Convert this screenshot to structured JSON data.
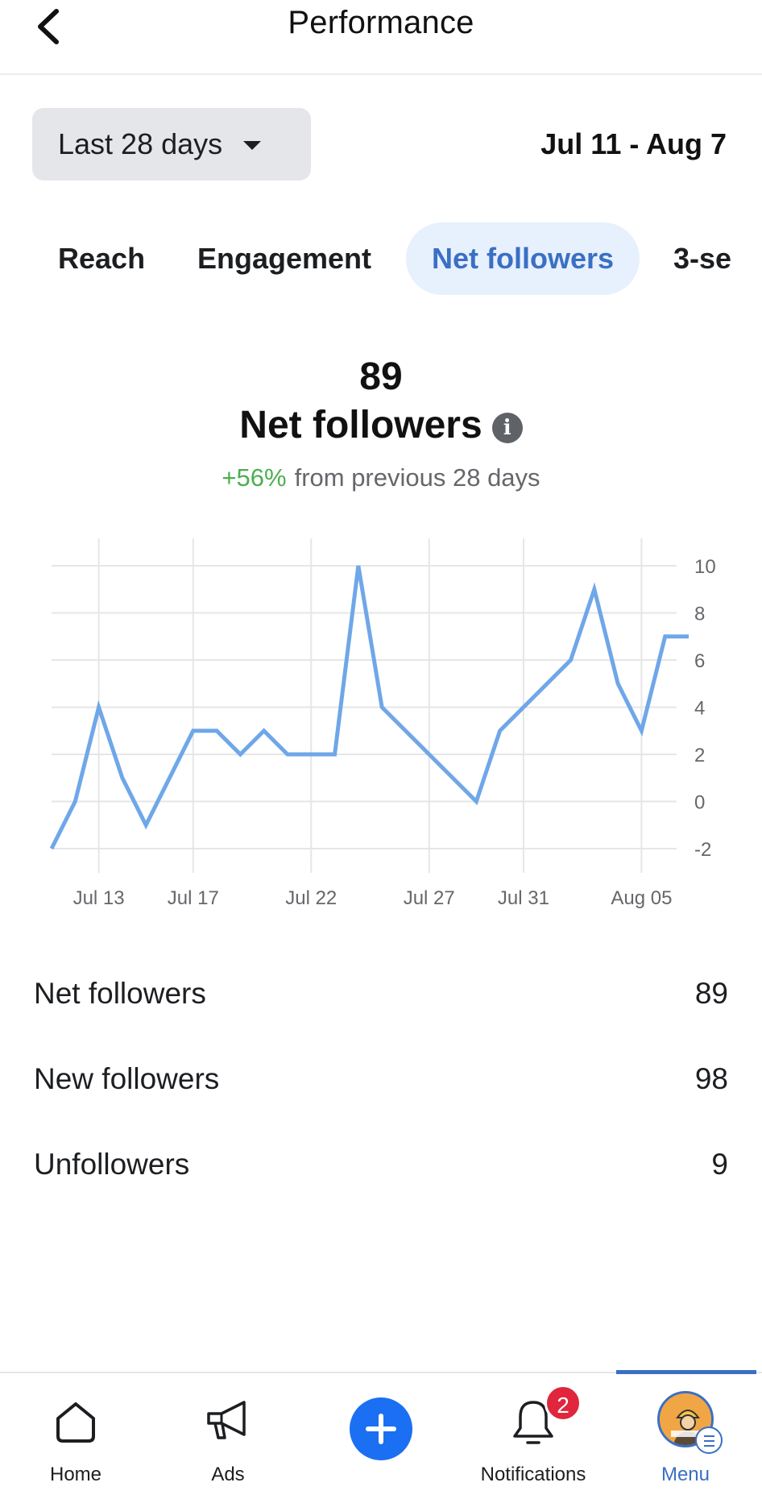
{
  "header": {
    "title": "Performance"
  },
  "filters": {
    "range_label": "Last 28 days",
    "date_range": "Jul 11 - Aug 7"
  },
  "tabs": [
    {
      "label": "Reach",
      "active": false
    },
    {
      "label": "Engagement",
      "active": false
    },
    {
      "label": "Net followers",
      "active": true
    },
    {
      "label": "3-se",
      "active": false
    }
  ],
  "summary": {
    "value": "89",
    "title": "Net followers",
    "change": "+56%",
    "change_text": "from previous 28 days",
    "change_color": "#4caf50"
  },
  "chart_data": {
    "type": "line",
    "x": [
      "Jul 11",
      "Jul 12",
      "Jul 13",
      "Jul 14",
      "Jul 15",
      "Jul 16",
      "Jul 17",
      "Jul 18",
      "Jul 19",
      "Jul 20",
      "Jul 21",
      "Jul 22",
      "Jul 23",
      "Jul 24",
      "Jul 25",
      "Jul 26",
      "Jul 27",
      "Jul 28",
      "Jul 29",
      "Jul 30",
      "Jul 31",
      "Aug 01",
      "Aug 02",
      "Aug 03",
      "Aug 04",
      "Aug 05",
      "Aug 06",
      "Aug 07"
    ],
    "series": [
      {
        "values": [
          -2,
          0,
          4,
          1,
          -1,
          1,
          3,
          3,
          2,
          3,
          2,
          2,
          2,
          10,
          4,
          3,
          2,
          1,
          0,
          3,
          4,
          5,
          6,
          9,
          5,
          3,
          7,
          7
        ],
        "color": "#6fa7e8"
      }
    ],
    "xticks": [
      "Jul 13",
      "Jul 17",
      "Jul 22",
      "Jul 27",
      "Jul 31",
      "Aug 05"
    ],
    "yticks": [
      10,
      8,
      6,
      4,
      2,
      0,
      -2
    ],
    "ylim": [
      -2,
      10
    ],
    "y_axis_side": "right",
    "grid": true,
    "title": "",
    "xlabel": "",
    "ylabel": ""
  },
  "stats": [
    {
      "label": "Net followers",
      "value": "89"
    },
    {
      "label": "New followers",
      "value": "98"
    },
    {
      "label": "Unfollowers",
      "value": "9"
    }
  ],
  "nav": {
    "items": [
      {
        "label": "Home",
        "icon": "home-icon"
      },
      {
        "label": "Ads",
        "icon": "megaphone-icon"
      },
      {
        "label": "",
        "icon": "plus-icon"
      },
      {
        "label": "Notifications",
        "icon": "bell-icon",
        "badge": "2"
      },
      {
        "label": "Menu",
        "icon": "avatar-icon",
        "active": true
      }
    ]
  },
  "colors": {
    "accent": "#3a6fc4",
    "badge": "#e0263c",
    "create": "#1b6ff2"
  }
}
